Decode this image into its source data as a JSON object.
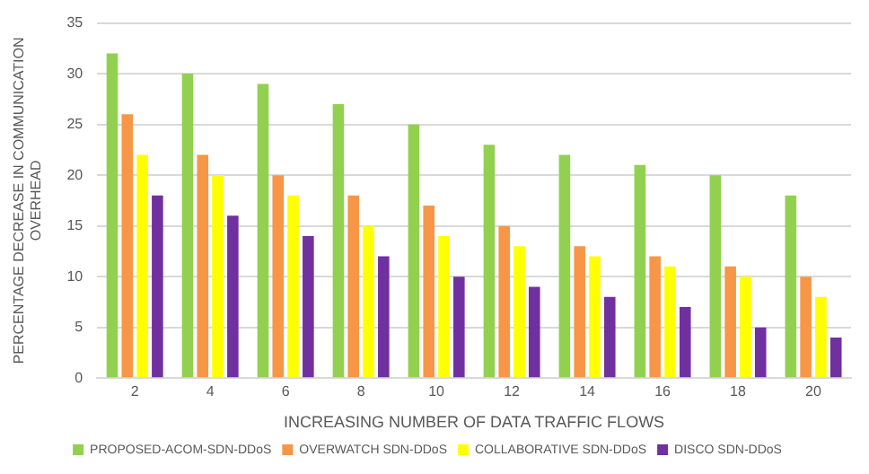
{
  "chart_data": {
    "type": "bar",
    "xlabel": "INCREASING NUMBER OF DATA TRAFFIC FLOWS",
    "ylabel": "PERCENTAGE DECREASE IN COMMUNICATION OVERHEAD",
    "categories": [
      "2",
      "4",
      "6",
      "8",
      "10",
      "12",
      "14",
      "16",
      "18",
      "20"
    ],
    "series": [
      {
        "name": "PROPOSED-ACOM-SDN-DDoS",
        "color": "#92d050",
        "values": [
          32,
          30,
          29,
          27,
          25,
          23,
          22,
          21,
          20,
          18
        ]
      },
      {
        "name": "OVERWATCH SDN-DDoS",
        "color": "#f79646",
        "values": [
          26,
          22,
          20,
          18,
          17,
          15,
          13,
          12,
          11,
          10
        ]
      },
      {
        "name": "COLLABORATIVE SDN-DDoS",
        "color": "#ffff00",
        "values": [
          22,
          20,
          18,
          15,
          14,
          13,
          12,
          11,
          10,
          8
        ]
      },
      {
        "name": "DISCO SDN-DDoS",
        "color": "#7030a0",
        "values": [
          18,
          16,
          14,
          12,
          10,
          9,
          8,
          7,
          5,
          4
        ]
      }
    ],
    "ylim": [
      0,
      35
    ],
    "yticks": [
      0,
      5,
      10,
      15,
      20,
      25,
      30,
      35
    ],
    "grid": "y",
    "legend": "bottom"
  }
}
